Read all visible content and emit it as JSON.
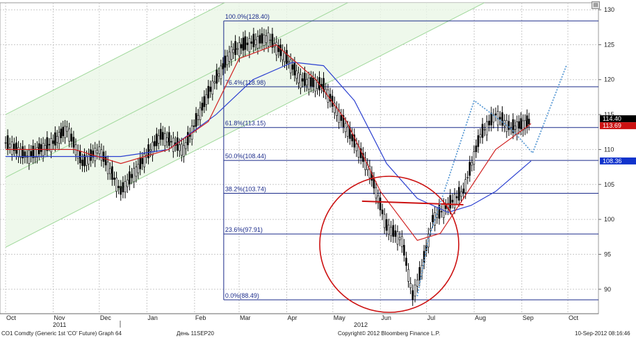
{
  "chart_data": {
    "type": "candlestick",
    "y_axis": {
      "ticks": [
        90,
        95,
        100,
        105,
        110,
        115,
        120,
        125,
        130
      ],
      "side": "right",
      "ylim": [
        86.5,
        131
      ]
    },
    "x_axis": {
      "months": [
        "Oct",
        "Nov",
        "Dec",
        "Jan",
        "Feb",
        "Mar",
        "Apr",
        "May",
        "Jun",
        "Jul",
        "Aug",
        "Sep",
        "Oct"
      ],
      "years": [
        "2011",
        "2012"
      ]
    },
    "fibonacci_levels": [
      {
        "label": "100.0%",
        "value": 128.4,
        "text": "(128.40)"
      },
      {
        "label": "76.4%",
        "value": 118.98,
        "text": "(118.98)"
      },
      {
        "label": "61.8%",
        "value": 113.15,
        "text": "(113.15)"
      },
      {
        "label": "50.0%",
        "value": 108.44,
        "text": "(108.44)"
      },
      {
        "label": "38.2%",
        "value": 103.74,
        "text": "(103.74)"
      },
      {
        "label": "23.6%",
        "value": 97.91,
        "text": "(97.91)"
      },
      {
        "label": "0.0%",
        "value": 88.49,
        "text": "(88.49)"
      }
    ],
    "last_price_tags": [
      {
        "value": "114.40",
        "color": "#000000"
      },
      {
        "value": "113.69",
        "color": "#cc1111"
      },
      {
        "value": "108.36",
        "color": "#1133cc"
      }
    ],
    "price_path": [
      {
        "date": "2011-10-01",
        "close": 111
      },
      {
        "date": "2011-10-15",
        "close": 109
      },
      {
        "date": "2011-11-01",
        "close": 111
      },
      {
        "date": "2011-11-10",
        "close": 113
      },
      {
        "date": "2011-11-20",
        "close": 108
      },
      {
        "date": "2011-12-01",
        "close": 110
      },
      {
        "date": "2011-12-15",
        "close": 104
      },
      {
        "date": "2011-12-25",
        "close": 107
      },
      {
        "date": "2012-01-10",
        "close": 112
      },
      {
        "date": "2012-01-25",
        "close": 110
      },
      {
        "date": "2012-02-10",
        "close": 118
      },
      {
        "date": "2012-02-25",
        "close": 124
      },
      {
        "date": "2012-03-05",
        "close": 125
      },
      {
        "date": "2012-03-20",
        "close": 126
      },
      {
        "date": "2012-04-01",
        "close": 123
      },
      {
        "date": "2012-04-10",
        "close": 120
      },
      {
        "date": "2012-04-25",
        "close": 119
      },
      {
        "date": "2012-05-05",
        "close": 115
      },
      {
        "date": "2012-05-15",
        "close": 111
      },
      {
        "date": "2012-05-25",
        "close": 107
      },
      {
        "date": "2012-06-05",
        "close": 99
      },
      {
        "date": "2012-06-15",
        "close": 97
      },
      {
        "date": "2012-06-22",
        "close": 89
      },
      {
        "date": "2012-06-28",
        "close": 93
      },
      {
        "date": "2012-07-05",
        "close": 100
      },
      {
        "date": "2012-07-15",
        "close": 102
      },
      {
        "date": "2012-07-25",
        "close": 104
      },
      {
        "date": "2012-08-05",
        "close": 112
      },
      {
        "date": "2012-08-15",
        "close": 115
      },
      {
        "date": "2012-08-25",
        "close": 113
      },
      {
        "date": "2012-09-07",
        "close": 114
      }
    ],
    "ma_red": [
      {
        "date": "2011-10-01",
        "value": 110
      },
      {
        "date": "2011-11-15",
        "value": 110
      },
      {
        "date": "2011-12-15",
        "value": 108
      },
      {
        "date": "2012-01-15",
        "value": 110
      },
      {
        "date": "2012-02-10",
        "value": 114
      },
      {
        "date": "2012-03-01",
        "value": 123
      },
      {
        "date": "2012-03-25",
        "value": 125
      },
      {
        "date": "2012-04-20",
        "value": 120
      },
      {
        "date": "2012-05-10",
        "value": 114
      },
      {
        "date": "2012-06-01",
        "value": 104
      },
      {
        "date": "2012-06-25",
        "value": 97
      },
      {
        "date": "2012-07-10",
        "value": 98
      },
      {
        "date": "2012-07-25",
        "value": 103
      },
      {
        "date": "2012-08-15",
        "value": 110
      },
      {
        "date": "2012-09-07",
        "value": 113.7
      }
    ],
    "ma_blue": [
      {
        "date": "2011-10-01",
        "value": 109
      },
      {
        "date": "2011-12-15",
        "value": 109
      },
      {
        "date": "2012-01-15",
        "value": 110
      },
      {
        "date": "2012-02-15",
        "value": 115
      },
      {
        "date": "2012-03-10",
        "value": 120
      },
      {
        "date": "2012-04-05",
        "value": 122.5
      },
      {
        "date": "2012-04-25",
        "value": 122
      },
      {
        "date": "2012-05-15",
        "value": 117
      },
      {
        "date": "2012-06-05",
        "value": 108
      },
      {
        "date": "2012-06-25",
        "value": 103
      },
      {
        "date": "2012-07-15",
        "value": 101
      },
      {
        "date": "2012-07-30",
        "value": 102
      },
      {
        "date": "2012-08-15",
        "value": 104
      },
      {
        "date": "2012-09-07",
        "value": 108.36
      }
    ],
    "channel_lines_green": [
      [
        {
          "date": "2011-10-01",
          "value": 115
        },
        {
          "date": "2012-09-30",
          "value": 156
        }
      ],
      [
        {
          "date": "2011-10-01",
          "value": 106
        },
        {
          "date": "2012-09-30",
          "value": 147
        }
      ],
      [
        {
          "date": "2011-10-01",
          "value": 96
        },
        {
          "date": "2012-09-30",
          "value": 137
        }
      ]
    ],
    "neckline": [
      {
        "date": "2012-05-20",
        "value": 102.6
      },
      {
        "date": "2012-07-25",
        "value": 102.1
      }
    ],
    "projection_dotted": [
      {
        "date": "2012-06-25",
        "value": 89
      },
      {
        "date": "2012-07-02",
        "value": 97
      },
      {
        "date": "2012-08-01",
        "value": 117
      },
      {
        "date": "2012-08-25",
        "value": 113
      },
      {
        "date": "2012-09-08",
        "value": 109.5
      },
      {
        "date": "2012-09-30",
        "value": 122
      }
    ]
  },
  "footer": {
    "left": "CO1 Comdty (Generic 1st 'CO' Future) Graph 64",
    "center_left": "День 11SEP20",
    "center": "Copyright© 2012 Bloomberg Finance L.P.",
    "right": "10-Sep-2012 08:16:46"
  },
  "corner_button_label": "▤"
}
